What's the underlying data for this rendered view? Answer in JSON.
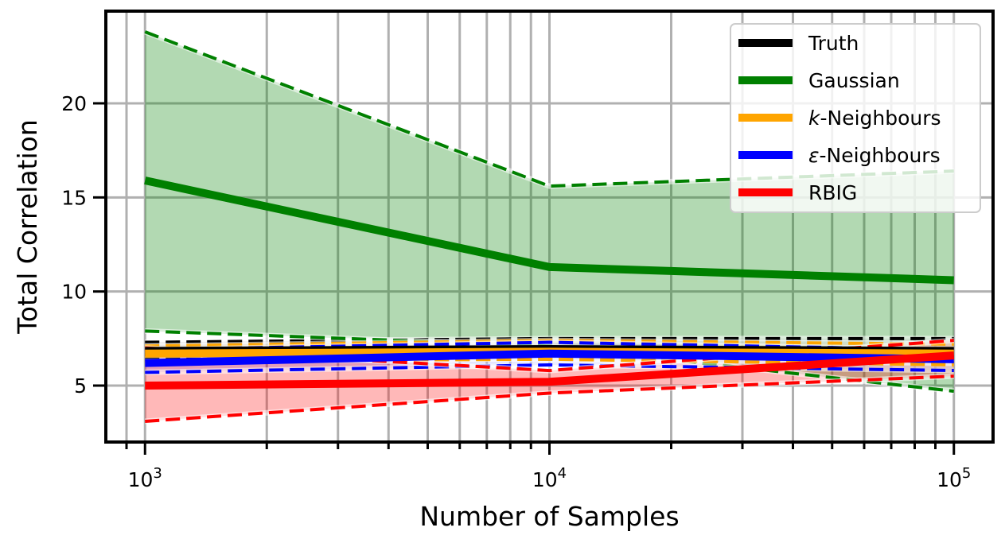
{
  "chart_data": {
    "type": "line",
    "title": "",
    "xlabel": "Number of Samples",
    "ylabel": "Total Correlation",
    "xscale": "log",
    "xlim": [
      800,
      125000
    ],
    "ylim": [
      2.0,
      24.9
    ],
    "x": [
      1000,
      10000,
      100000
    ],
    "x_ticks": [
      {
        "value": 1000,
        "base": "10",
        "exp": "3"
      },
      {
        "value": 10000,
        "base": "10",
        "exp": "4"
      },
      {
        "value": 100000,
        "base": "10",
        "exp": "5"
      }
    ],
    "y_ticks": [
      5,
      10,
      15,
      20
    ],
    "grid": true,
    "legend_position": "top-right",
    "series": [
      {
        "name": "Truth",
        "color": "#000000",
        "values": [
          6.8,
          6.9,
          6.8
        ],
        "upper": [
          7.3,
          7.5,
          7.5
        ],
        "lower": [
          6.4,
          6.4,
          6.2
        ]
      },
      {
        "name": "Gaussian",
        "color": "#008000",
        "values": [
          15.9,
          11.3,
          10.6
        ],
        "upper": [
          23.8,
          15.6,
          16.4
        ],
        "lower": [
          7.9,
          7.1,
          4.7
        ]
      },
      {
        "name": "k-Neighbours",
        "name_italic": "k",
        "name_rest": "-Neighbours",
        "color": "#FFA500",
        "values": [
          6.7,
          6.8,
          6.7
        ],
        "upper": [
          7.1,
          7.4,
          7.2
        ],
        "lower": [
          6.3,
          6.4,
          6.1
        ]
      },
      {
        "name": "ε-Neighbours",
        "name_italic": "ε",
        "name_rest": "-Neighbours",
        "color": "#0000FF",
        "values": [
          6.2,
          6.7,
          6.4
        ],
        "upper": [
          6.9,
          7.3,
          6.9
        ],
        "lower": [
          5.7,
          6.1,
          5.8
        ]
      },
      {
        "name": "RBIG",
        "color": "#FF0000",
        "values": [
          5.0,
          5.2,
          6.6
        ],
        "upper": [
          7.0,
          5.8,
          7.4
        ],
        "lower": [
          3.1,
          4.6,
          5.5
        ]
      }
    ]
  }
}
